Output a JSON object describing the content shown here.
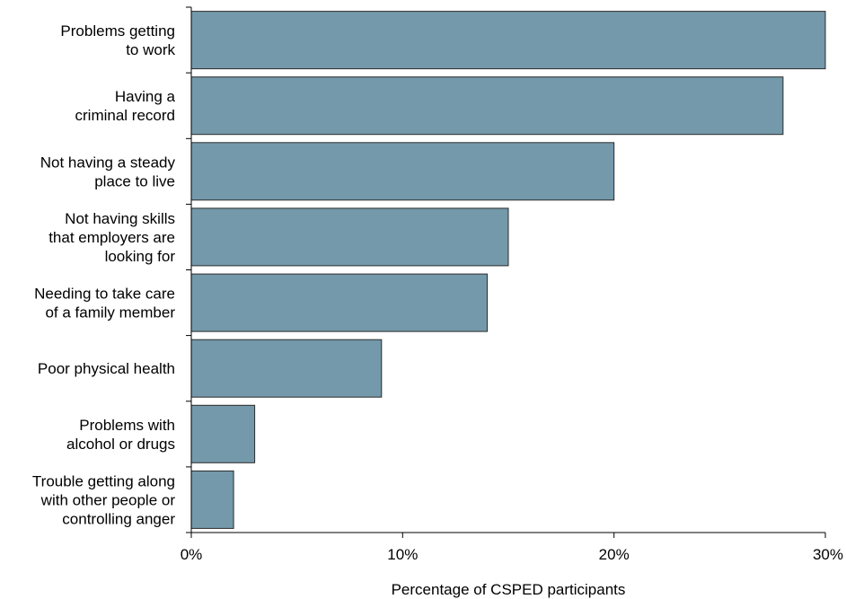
{
  "chart_data": {
    "type": "bar",
    "orientation": "horizontal",
    "categories": [
      [
        "Problems getting",
        "to work"
      ],
      [
        "Having a",
        "criminal record"
      ],
      [
        "Not having a steady",
        "place to live"
      ],
      [
        "Not having skills",
        "that employers are",
        "looking for"
      ],
      [
        "Needing to take care",
        "of a family member"
      ],
      [
        "Poor physical health"
      ],
      [
        "Problems with",
        "alcohol or drugs"
      ],
      [
        "Trouble getting along",
        "with other people or",
        "controlling anger"
      ]
    ],
    "values": [
      30,
      28,
      20,
      15,
      14,
      9,
      3,
      2
    ],
    "xlim": [
      0,
      30
    ],
    "xticks": [
      0,
      10,
      20,
      30
    ],
    "xtick_labels": [
      "0%",
      "10%",
      "20%",
      "30%"
    ],
    "xlabel": "Percentage of CSPED participants",
    "ylabel": "",
    "title": "",
    "grid": false,
    "colors": {
      "bar_fill": "#7499aa",
      "bar_stroke": "#2b2b2b",
      "axis": "#000000"
    }
  }
}
